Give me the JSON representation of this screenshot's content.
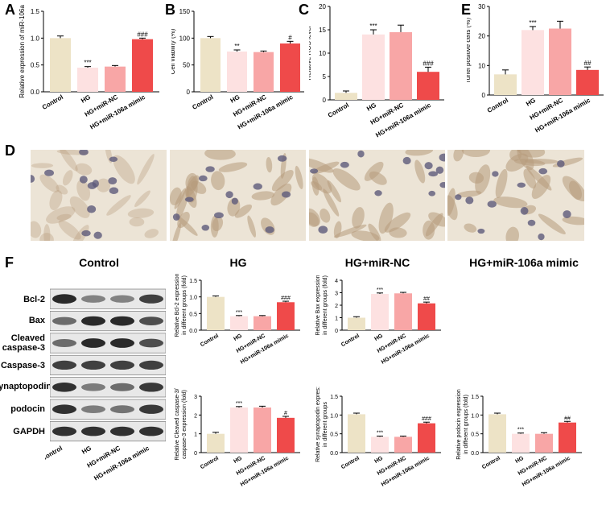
{
  "panels": {
    "A": "A",
    "B": "B",
    "C": "C",
    "E": "E",
    "D": "D",
    "F": "F"
  },
  "colors": {
    "control": "#ede3c6",
    "hg": "#fde1e1",
    "hg_nc": "#f8a6a6",
    "mimic": "#ef4a4a",
    "stain_bg": "#ece4d6",
    "cell": "#b79b7c",
    "nucleus": "#5e5a7a",
    "band": "#222222"
  },
  "micrographs": {
    "labels": [
      "Control",
      "HG",
      "HG+miR-NC",
      "HG+miR-106a mimic"
    ]
  },
  "blot": {
    "proteins": [
      "Bcl-2",
      "Bax",
      "Cleaved caspase-3",
      "Caspase-3",
      "synaptopodin",
      "podocin",
      "GAPDH"
    ],
    "lanes": [
      "Control",
      "HG",
      "HG+miR-NC",
      "HG+miR-106a mimic"
    ]
  },
  "chart_data": [
    {
      "id": "A",
      "type": "bar",
      "categories": [
        "Control",
        "HG",
        "HG+miR-NC",
        "HG+miR-106a mimic"
      ],
      "values": [
        1.0,
        0.45,
        0.47,
        0.98
      ],
      "errors": [
        0.04,
        0.02,
        0.02,
        0.02
      ],
      "ylabel": "Relative expression of miR-106a",
      "ylim": [
        0,
        1.5
      ],
      "yticks": [
        "0.0",
        "0.5",
        "1.0",
        "1.5"
      ],
      "ytick_values": [
        0,
        0.5,
        1.0,
        1.5
      ],
      "annotations": [
        "",
        "***",
        "",
        "###"
      ]
    },
    {
      "id": "B",
      "type": "bar",
      "categories": [
        "Control",
        "HG",
        "HG+miR-NC",
        "HG+miR-106a mimic"
      ],
      "values": [
        100,
        75,
        74,
        90
      ],
      "errors": [
        3,
        3,
        2,
        4
      ],
      "ylabel": "Cell viability (%)",
      "ylim": [
        0,
        150
      ],
      "yticks": [
        "0",
        "50",
        "100",
        "150"
      ],
      "ytick_values": [
        0,
        50,
        100,
        150
      ],
      "annotations": [
        "",
        "**",
        "",
        "#"
      ]
    },
    {
      "id": "C",
      "type": "bar",
      "categories": [
        "Control",
        "HG",
        "HG+miR-NC",
        "HG+miR-106a mimic"
      ],
      "values": [
        1.5,
        14,
        14.5,
        6
      ],
      "errors": [
        0.4,
        1.0,
        1.5,
        1.0
      ],
      "ylabel": "Relative ROS level",
      "ylim": [
        0,
        20
      ],
      "yticks": [
        "0",
        "5",
        "10",
        "15",
        "20"
      ],
      "ytick_values": [
        0,
        5,
        10,
        15,
        20
      ],
      "annotations": [
        "",
        "***",
        "",
        "###"
      ]
    },
    {
      "id": "E",
      "type": "bar",
      "categories": [
        "Control",
        "HG",
        "HG+miR-NC",
        "HG+miR-106a mimic"
      ],
      "values": [
        7,
        22,
        22.5,
        8.5
      ],
      "errors": [
        1.5,
        1.2,
        2.5,
        1.0
      ],
      "ylabel": "Tunel positive cells (%)",
      "ylim": [
        0,
        30
      ],
      "yticks": [
        "0",
        "10",
        "20",
        "30"
      ],
      "ytick_values": [
        0,
        10,
        20,
        30
      ],
      "annotations": [
        "",
        "***",
        "",
        "##"
      ]
    },
    {
      "id": "F1",
      "type": "bar",
      "categories": [
        "Control",
        "HG",
        "HG+miR-NC",
        "HG+miR-106a mimic"
      ],
      "values": [
        1.0,
        0.42,
        0.42,
        0.84
      ],
      "errors": [
        0.03,
        0.02,
        0.02,
        0.03
      ],
      "ylabel": "Relative Bcl-2 expression in different groups (fold)",
      "ylim": [
        0,
        1.5
      ],
      "yticks": [
        "0.0",
        "0.5",
        "1.0",
        "1.5"
      ],
      "ytick_values": [
        0,
        0.5,
        1.0,
        1.5
      ],
      "annotations": [
        "",
        "***",
        "",
        "###"
      ]
    },
    {
      "id": "F2",
      "type": "bar",
      "categories": [
        "Control",
        "HG",
        "HG+miR-NC",
        "HG+miR-106a mimic"
      ],
      "values": [
        1.0,
        2.9,
        2.95,
        2.15
      ],
      "errors": [
        0.08,
        0.08,
        0.08,
        0.1
      ],
      "ylabel": "Relative Bax expression in different groups (fold)",
      "ylim": [
        0,
        4
      ],
      "yticks": [
        "0",
        "1",
        "2",
        "3",
        "4"
      ],
      "ytick_values": [
        0,
        1,
        2,
        3,
        4
      ],
      "annotations": [
        "",
        "***",
        "",
        "##"
      ]
    },
    {
      "id": "F3",
      "type": "bar",
      "categories": [
        "Control",
        "HG",
        "HG+miR-NC",
        "HG+miR-106a mimic"
      ],
      "values": [
        1.0,
        2.4,
        2.4,
        1.85
      ],
      "errors": [
        0.08,
        0.05,
        0.07,
        0.08
      ],
      "ylabel": "Relative Cleaved caspase-3/ caspase-3 expression (fold)",
      "ylim": [
        0,
        3
      ],
      "yticks": [
        "0",
        "1",
        "2",
        "3"
      ],
      "ytick_values": [
        0,
        1,
        2,
        3
      ],
      "annotations": [
        "",
        "***",
        "",
        "#"
      ]
    },
    {
      "id": "F4",
      "type": "bar",
      "categories": [
        "Control",
        "HG",
        "HG+miR-NC",
        "HG+miR-106a mimic"
      ],
      "values": [
        1.02,
        0.42,
        0.42,
        0.78
      ],
      "errors": [
        0.03,
        0.02,
        0.02,
        0.03
      ],
      "ylabel": "Relative synaptopodin expres: in different groups",
      "ylim": [
        0,
        1.5
      ],
      "yticks": [
        "0.0",
        "0.5",
        "1.0",
        "1.5"
      ],
      "ytick_values": [
        0,
        0.5,
        1.0,
        1.5
      ],
      "annotations": [
        "",
        "***",
        "",
        "###"
      ]
    },
    {
      "id": "F5",
      "type": "bar",
      "categories": [
        "Control",
        "HG",
        "HG+miR-NC",
        "HG+miR-106a mimic"
      ],
      "values": [
        1.02,
        0.5,
        0.5,
        0.8
      ],
      "errors": [
        0.03,
        0.02,
        0.03,
        0.03
      ],
      "ylabel": "Relative podocin expression in different groups (fold)",
      "ylim": [
        0,
        1.5
      ],
      "yticks": [
        "0.0",
        "0.5",
        "1.0",
        "1.5"
      ],
      "ytick_values": [
        0,
        0.5,
        1.0,
        1.5
      ],
      "annotations": [
        "",
        "***",
        "",
        "##"
      ]
    }
  ]
}
